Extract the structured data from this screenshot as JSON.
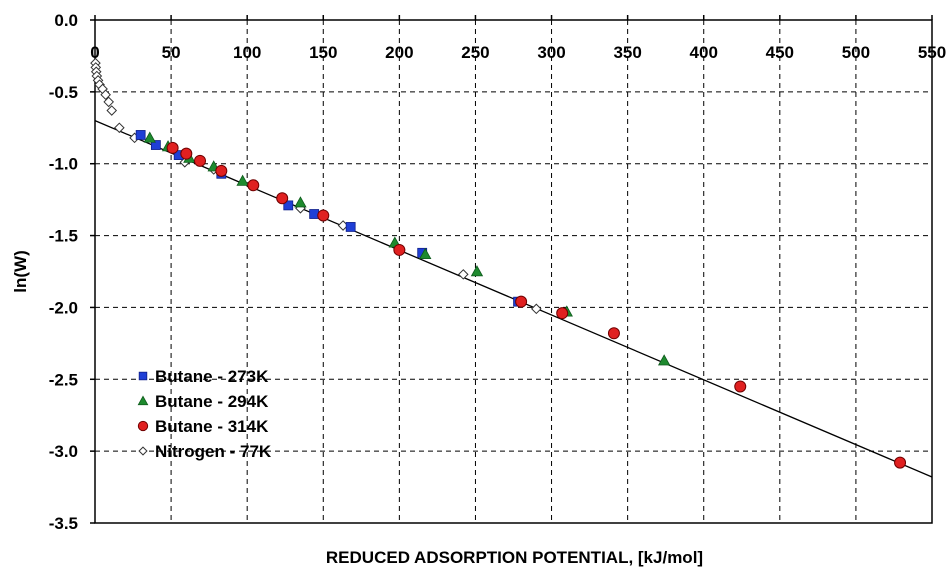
{
  "chart_data": {
    "type": "scatter",
    "title": "",
    "xlabel": "REDUCED ADSORPTION POTENTIAL, [kJ/mol]",
    "ylabel": "ln(W)",
    "xlim": [
      0,
      550
    ],
    "ylim": [
      -3.5,
      0
    ],
    "x_ticks": [
      "0",
      "50",
      "100",
      "150",
      "200",
      "250",
      "300",
      "350",
      "400",
      "450",
      "500",
      "550"
    ],
    "y_ticks": [
      "0.0",
      "-0.5",
      "-1.0",
      "-1.5",
      "-2.0",
      "-2.5",
      "-3.0",
      "-3.5"
    ],
    "x_axis_position": "top",
    "grid": true,
    "legend_position": "bottom-left",
    "series": [
      {
        "name": "Butane - 273K",
        "marker": "square",
        "color": "#1f3fd6",
        "points": [
          [
            30,
            -0.8
          ],
          [
            40,
            -0.87
          ],
          [
            55,
            -0.94
          ],
          [
            83,
            -1.07
          ],
          [
            127,
            -1.29
          ],
          [
            144,
            -1.35
          ],
          [
            168,
            -1.44
          ],
          [
            215,
            -1.62
          ],
          [
            278,
            -1.96
          ]
        ]
      },
      {
        "name": "Butane - 294K",
        "marker": "triangle",
        "color": "#1e8a2e",
        "points": [
          [
            36,
            -0.82
          ],
          [
            48,
            -0.88
          ],
          [
            62,
            -0.96
          ],
          [
            78,
            -1.02
          ],
          [
            97,
            -1.12
          ],
          [
            135,
            -1.27
          ],
          [
            197,
            -1.55
          ],
          [
            217,
            -1.63
          ],
          [
            251,
            -1.75
          ],
          [
            310,
            -2.03
          ],
          [
            374,
            -2.37
          ]
        ]
      },
      {
        "name": "Butane - 314K",
        "marker": "circle",
        "color": "#e02020",
        "points": [
          [
            51,
            -0.89
          ],
          [
            60,
            -0.93
          ],
          [
            69,
            -0.98
          ],
          [
            83,
            -1.05
          ],
          [
            104,
            -1.15
          ],
          [
            123,
            -1.24
          ],
          [
            150,
            -1.36
          ],
          [
            200,
            -1.6
          ],
          [
            280,
            -1.96
          ],
          [
            307,
            -2.04
          ],
          [
            341,
            -2.18
          ],
          [
            424,
            -2.55
          ],
          [
            529,
            -3.08
          ]
        ]
      },
      {
        "name": "Nitrogen - 77K",
        "marker": "diamond",
        "color": "#ffffff",
        "points": [
          [
            0.3,
            -0.3
          ],
          [
            0.5,
            -0.33
          ],
          [
            0.8,
            -0.36
          ],
          [
            1.2,
            -0.39
          ],
          [
            2,
            -0.42
          ],
          [
            3,
            -0.45
          ],
          [
            5,
            -0.48
          ],
          [
            7,
            -0.52
          ],
          [
            9,
            -0.57
          ],
          [
            11,
            -0.63
          ],
          [
            16,
            -0.75
          ],
          [
            26,
            -0.82
          ],
          [
            59,
            -0.99
          ],
          [
            78,
            -1.04
          ],
          [
            135,
            -1.31
          ],
          [
            163,
            -1.43
          ],
          [
            242,
            -1.77
          ],
          [
            290,
            -2.01
          ]
        ]
      }
    ],
    "trendline": {
      "x": [
        0,
        550
      ],
      "y": [
        -0.7,
        -3.18
      ]
    }
  }
}
